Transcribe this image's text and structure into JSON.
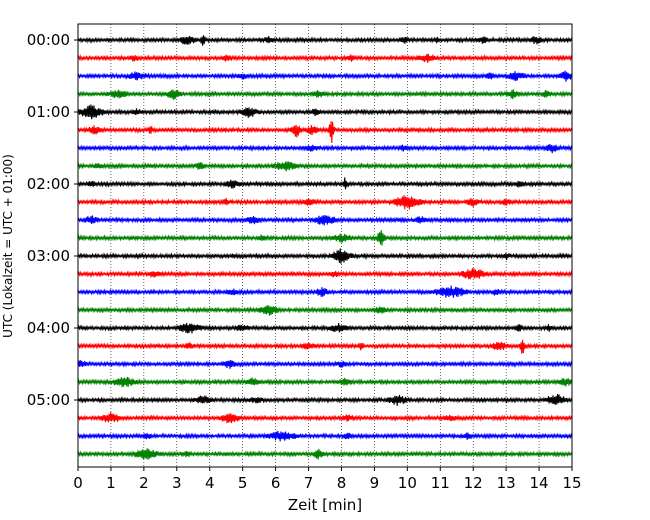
{
  "chart_data": {
    "type": "line",
    "title": "",
    "xlabel": "Zeit  [min]",
    "ylabel": "UTC (Lokalzeit = UTC + 01:00)",
    "xlim": [
      0,
      15
    ],
    "x_ticks": [
      "0",
      "1",
      "2",
      "3",
      "4",
      "5",
      "6",
      "7",
      "8",
      "9",
      "10",
      "11",
      "12",
      "13",
      "14",
      "15"
    ],
    "y_tick_labels": [
      "00:00",
      "01:00",
      "02:00",
      "03:00",
      "04:00",
      "05:00"
    ],
    "trace_colors": [
      "#000000",
      "#ff0000",
      "#0000ff",
      "#008000"
    ],
    "grid": "vertical dotted",
    "traces": [
      {
        "start": "00:00",
        "color": "#000000",
        "events": [
          [
            3.3,
            5,
            0.35
          ],
          [
            3.8,
            6,
            0.1
          ],
          [
            5.8,
            3,
            0.2
          ],
          [
            9.9,
            3,
            0.2
          ],
          [
            10.9,
            3,
            0.1
          ],
          [
            12.3,
            3,
            0.2
          ],
          [
            13.9,
            4,
            0.25
          ]
        ]
      },
      {
        "start": "00:15",
        "color": "#ff0000",
        "events": [
          [
            1.7,
            3,
            0.2
          ],
          [
            4.5,
            3,
            0.2
          ],
          [
            8.3,
            3,
            0.2
          ],
          [
            10.6,
            4,
            0.4
          ]
        ]
      },
      {
        "start": "00:30",
        "color": "#0000ff",
        "events": [
          [
            1.8,
            4,
            0.4
          ],
          [
            5.0,
            3,
            0.2
          ],
          [
            12.5,
            3,
            0.2
          ],
          [
            13.3,
            4,
            0.4
          ],
          [
            14.8,
            5,
            0.3
          ]
        ]
      },
      {
        "start": "00:45",
        "color": "#008000",
        "events": [
          [
            1.2,
            4,
            0.4
          ],
          [
            2.9,
            5,
            0.3
          ],
          [
            7.3,
            3,
            0.3
          ],
          [
            13.2,
            4,
            0.3
          ],
          [
            14.2,
            3,
            0.2
          ]
        ]
      },
      {
        "start": "01:00",
        "color": "#000000",
        "events": [
          [
            0.4,
            7,
            0.5
          ],
          [
            1.8,
            3,
            0.2
          ],
          [
            5.2,
            5,
            0.4
          ],
          [
            7.2,
            3,
            0.2
          ]
        ]
      },
      {
        "start": "01:15",
        "color": "#ff0000",
        "events": [
          [
            0.5,
            4,
            0.3
          ],
          [
            2.2,
            4,
            0.1
          ],
          [
            6.6,
            8,
            0.2
          ],
          [
            7.1,
            4,
            0.3
          ],
          [
            7.7,
            13,
            0.1
          ]
        ]
      },
      {
        "start": "01:30",
        "color": "#0000ff",
        "events": [
          [
            7.1,
            3,
            0.3
          ],
          [
            9.9,
            3,
            0.2
          ],
          [
            14.4,
            4,
            0.3
          ]
        ]
      },
      {
        "start": "01:45",
        "color": "#008000",
        "events": [
          [
            0.6,
            3,
            0.2
          ],
          [
            3.7,
            4,
            0.2
          ],
          [
            6.3,
            5,
            0.5
          ]
        ]
      },
      {
        "start": "02:00",
        "color": "#000000",
        "events": [
          [
            0.4,
            3,
            0.2
          ],
          [
            4.7,
            4,
            0.3
          ],
          [
            8.1,
            6,
            0.1
          ],
          [
            13.4,
            3,
            0.2
          ]
        ]
      },
      {
        "start": "02:15",
        "color": "#ff0000",
        "events": [
          [
            4.5,
            3,
            0.2
          ],
          [
            7.0,
            3,
            0.3
          ],
          [
            10.0,
            7,
            0.6
          ],
          [
            12.0,
            4,
            0.3
          ],
          [
            13.0,
            3,
            0.2
          ]
        ]
      },
      {
        "start": "02:30",
        "color": "#0000ff",
        "events": [
          [
            0.4,
            4,
            0.3
          ],
          [
            5.3,
            4,
            0.3
          ],
          [
            7.5,
            5,
            0.5
          ],
          [
            10.4,
            3,
            0.3
          ]
        ]
      },
      {
        "start": "02:45",
        "color": "#008000",
        "events": [
          [
            5.6,
            3,
            0.2
          ],
          [
            8.0,
            4,
            0.4
          ],
          [
            9.2,
            10,
            0.15
          ]
        ]
      },
      {
        "start": "03:00",
        "color": "#000000",
        "events": [
          [
            4.7,
            3,
            0.1
          ],
          [
            8.0,
            7,
            0.4
          ],
          [
            13.0,
            3,
            0.2
          ]
        ]
      },
      {
        "start": "03:15",
        "color": "#ff0000",
        "events": [
          [
            2.3,
            3,
            0.3
          ],
          [
            7.8,
            3,
            0.2
          ],
          [
            12.0,
            6,
            0.5
          ]
        ]
      },
      {
        "start": "03:30",
        "color": "#0000ff",
        "events": [
          [
            4.7,
            3,
            0.3
          ],
          [
            7.4,
            4,
            0.3
          ],
          [
            11.3,
            6,
            0.7
          ],
          [
            12.7,
            3,
            0.2
          ]
        ]
      },
      {
        "start": "03:45",
        "color": "#008000",
        "events": [
          [
            5.8,
            5,
            0.4
          ],
          [
            9.2,
            3,
            0.3
          ]
        ]
      },
      {
        "start": "04:00",
        "color": "#000000",
        "events": [
          [
            3.4,
            5,
            0.5
          ],
          [
            5.0,
            3,
            0.3
          ],
          [
            7.9,
            4,
            0.4
          ],
          [
            13.4,
            3,
            0.2
          ],
          [
            14.3,
            4,
            0.1
          ]
        ]
      },
      {
        "start": "04:15",
        "color": "#ff0000",
        "events": [
          [
            3.4,
            3,
            0.2
          ],
          [
            7.0,
            3,
            0.3
          ],
          [
            8.6,
            4,
            0.1
          ],
          [
            12.8,
            5,
            0.3
          ],
          [
            13.5,
            9,
            0.1
          ]
        ]
      },
      {
        "start": "04:30",
        "color": "#0000ff",
        "events": [
          [
            0.1,
            4,
            0.2
          ],
          [
            4.6,
            4,
            0.3
          ],
          [
            8.0,
            3,
            0.2
          ]
        ]
      },
      {
        "start": "04:45",
        "color": "#008000",
        "events": [
          [
            1.4,
            5,
            0.5
          ],
          [
            5.3,
            4,
            0.3
          ],
          [
            8.1,
            3,
            0.3
          ],
          [
            14.8,
            4,
            0.3
          ]
        ]
      },
      {
        "start": "05:00",
        "color": "#000000",
        "events": [
          [
            3.8,
            4,
            0.4
          ],
          [
            5.4,
            3,
            0.3
          ],
          [
            9.7,
            5,
            0.4
          ],
          [
            14.5,
            6,
            0.4
          ]
        ]
      },
      {
        "start": "05:15",
        "color": "#ff0000",
        "events": [
          [
            1.0,
            5,
            0.4
          ],
          [
            4.6,
            5,
            0.4
          ],
          [
            8.2,
            3,
            0.3
          ],
          [
            11.3,
            3,
            0.3
          ]
        ]
      },
      {
        "start": "05:30",
        "color": "#0000ff",
        "events": [
          [
            2.1,
            3,
            0.2
          ],
          [
            6.2,
            5,
            0.6
          ],
          [
            8.2,
            3,
            0.2
          ],
          [
            11.8,
            3,
            0.2
          ]
        ]
      },
      {
        "start": "05:45",
        "color": "#008000",
        "events": [
          [
            2.1,
            6,
            0.5
          ],
          [
            3.3,
            3,
            0.2
          ],
          [
            7.3,
            5,
            0.2
          ]
        ]
      }
    ]
  }
}
